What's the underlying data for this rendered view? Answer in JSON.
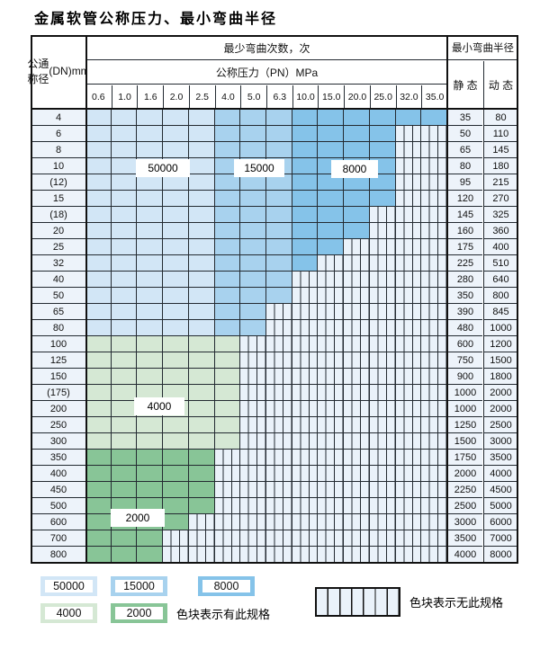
{
  "title": "金属软管公称压力、最小弯曲半径",
  "table": {
    "header": {
      "dn_label_lines": [
        "公称",
        "通径",
        "(DN)",
        "mm"
      ],
      "bend_cycles_label": "最少弯曲次数，次",
      "pressure_label": "公称压力（PN）MPa",
      "min_radius_label": "最小弯曲半径",
      "static_label": "静 态",
      "dynamic_label": "动 态",
      "pressure_values": [
        "0.6",
        "1.0",
        "1.6",
        "2.0",
        "2.5",
        "4.0",
        "5.0",
        "6.3",
        "10.0",
        "15.0",
        "20.0",
        "25.0",
        "32.0",
        "35.0"
      ]
    },
    "rows": [
      {
        "dn": "4",
        "colored_cols": 14,
        "band": "blue",
        "static": "35",
        "dynamic": "80"
      },
      {
        "dn": "6",
        "colored_cols": 12,
        "band": "blue",
        "static": "50",
        "dynamic": "110"
      },
      {
        "dn": "8",
        "colored_cols": 12,
        "band": "blue",
        "static": "65",
        "dynamic": "145"
      },
      {
        "dn": "10",
        "colored_cols": 12,
        "band": "blue",
        "static": "80",
        "dynamic": "180"
      },
      {
        "dn": "(12)",
        "colored_cols": 12,
        "band": "blue",
        "static": "95",
        "dynamic": "215"
      },
      {
        "dn": "15",
        "colored_cols": 12,
        "band": "blue",
        "static": "120",
        "dynamic": "270"
      },
      {
        "dn": "(18)",
        "colored_cols": 11,
        "band": "blue",
        "static": "145",
        "dynamic": "325"
      },
      {
        "dn": "20",
        "colored_cols": 11,
        "band": "blue",
        "static": "160",
        "dynamic": "360"
      },
      {
        "dn": "25",
        "colored_cols": 10,
        "band": "blue",
        "static": "175",
        "dynamic": "400"
      },
      {
        "dn": "32",
        "colored_cols": 9,
        "band": "blue",
        "static": "225",
        "dynamic": "510"
      },
      {
        "dn": "40",
        "colored_cols": 8,
        "band": "blue",
        "static": "280",
        "dynamic": "640"
      },
      {
        "dn": "50",
        "colored_cols": 8,
        "band": "blue",
        "static": "350",
        "dynamic": "800"
      },
      {
        "dn": "65",
        "colored_cols": 7,
        "band": "blue",
        "static": "390",
        "dynamic": "845"
      },
      {
        "dn": "80",
        "colored_cols": 7,
        "band": "blue",
        "static": "480",
        "dynamic": "1000"
      },
      {
        "dn": "100",
        "colored_cols": 6,
        "band": "green-light",
        "static": "600",
        "dynamic": "1200"
      },
      {
        "dn": "125",
        "colored_cols": 6,
        "band": "green-light",
        "static": "750",
        "dynamic": "1500"
      },
      {
        "dn": "150",
        "colored_cols": 6,
        "band": "green-light",
        "static": "900",
        "dynamic": "1800"
      },
      {
        "dn": "(175)",
        "colored_cols": 6,
        "band": "green-light",
        "static": "1000",
        "dynamic": "2000"
      },
      {
        "dn": "200",
        "colored_cols": 6,
        "band": "green-light",
        "static": "1000",
        "dynamic": "2000"
      },
      {
        "dn": "250",
        "colored_cols": 6,
        "band": "green-light",
        "static": "1250",
        "dynamic": "2500"
      },
      {
        "dn": "300",
        "colored_cols": 6,
        "band": "green-light",
        "static": "1500",
        "dynamic": "3000"
      },
      {
        "dn": "350",
        "colored_cols": 5,
        "band": "green-dark",
        "static": "1750",
        "dynamic": "3500"
      },
      {
        "dn": "400",
        "colored_cols": 5,
        "band": "green-dark",
        "static": "2000",
        "dynamic": "4000"
      },
      {
        "dn": "450",
        "colored_cols": 5,
        "band": "green-dark",
        "static": "2250",
        "dynamic": "4500"
      },
      {
        "dn": "500",
        "colored_cols": 5,
        "band": "green-dark",
        "static": "2500",
        "dynamic": "5000"
      },
      {
        "dn": "600",
        "colored_cols": 4,
        "band": "green-dark",
        "static": "3000",
        "dynamic": "6000"
      },
      {
        "dn": "700",
        "colored_cols": 3,
        "band": "green-dark",
        "static": "3500",
        "dynamic": "7000"
      },
      {
        "dn": "800",
        "colored_cols": 3,
        "band": "green-dark",
        "static": "4000",
        "dynamic": "8000"
      }
    ],
    "cell_badges": [
      "50000",
      "15000",
      "8000",
      "4000",
      "2000"
    ]
  },
  "legend": {
    "items": [
      {
        "label": "50000",
        "color": "#d2e6f6"
      },
      {
        "label": "15000",
        "color": "#a8d2ee"
      },
      {
        "label": "8000",
        "color": "#85c3e9"
      },
      {
        "label": "4000",
        "color": "#d5e8d4"
      },
      {
        "label": "2000",
        "color": "#88c597"
      }
    ],
    "available_text": "色块表示有此规格",
    "unavailable_text": "色块表示无此规格"
  },
  "colors": {
    "zone_50000": "#d2e6f6",
    "zone_15000": "#a8d2ee",
    "zone_8000": "#85c3e9",
    "zone_4000": "#d5e8d4",
    "zone_2000": "#88c597",
    "no_spec_bg": "#eaf2fa",
    "grid_line": "#232a31",
    "label_cell_bg": "#edf3fa"
  }
}
